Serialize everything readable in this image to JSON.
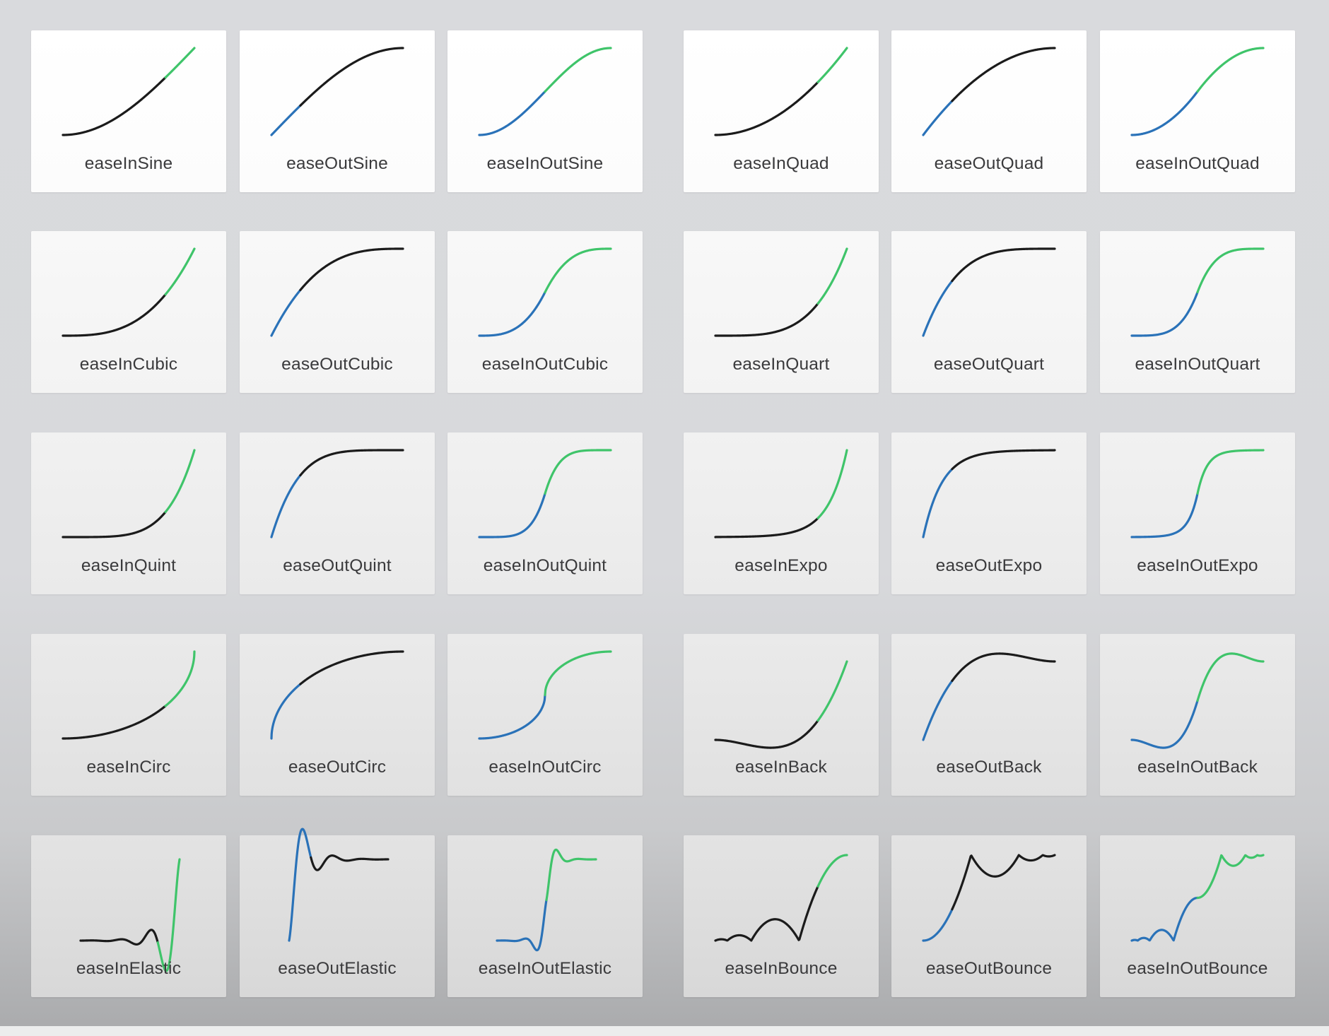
{
  "colors": {
    "ease_in_segment": "#3fc46a",
    "ease_out_segment": "#2a72b8",
    "neutral_segment": "#1b1b1b",
    "card_top": "#ffffff",
    "card_bottom": "#d9d9db",
    "label_text": "#3a3a3c"
  },
  "curves": [
    {
      "label": "easeInSine",
      "fn": "easeInSine"
    },
    {
      "label": "easeOutSine",
      "fn": "easeOutSine"
    },
    {
      "label": "easeInOutSine",
      "fn": "easeInOutSine"
    },
    {
      "label": "easeInQuad",
      "fn": "easeInQuad"
    },
    {
      "label": "easeOutQuad",
      "fn": "easeOutQuad"
    },
    {
      "label": "easeInOutQuad",
      "fn": "easeInOutQuad"
    },
    {
      "label": "easeInCubic",
      "fn": "easeInCubic"
    },
    {
      "label": "easeOutCubic",
      "fn": "easeOutCubic"
    },
    {
      "label": "easeInOutCubic",
      "fn": "easeInOutCubic"
    },
    {
      "label": "easeInQuart",
      "fn": "easeInQuart"
    },
    {
      "label": "easeOutQuart",
      "fn": "easeOutQuart"
    },
    {
      "label": "easeInOutQuart",
      "fn": "easeInOutQuart"
    },
    {
      "label": "easeInQuint",
      "fn": "easeInQuint"
    },
    {
      "label": "easeOutQuint",
      "fn": "easeOutQuint"
    },
    {
      "label": "easeInOutQuint",
      "fn": "easeInOutQuint"
    },
    {
      "label": "easeInExpo",
      "fn": "easeInExpo"
    },
    {
      "label": "easeOutExpo",
      "fn": "easeOutExpo"
    },
    {
      "label": "easeInOutExpo",
      "fn": "easeInOutExpo"
    },
    {
      "label": "easeInCirc",
      "fn": "easeInCirc"
    },
    {
      "label": "easeOutCirc",
      "fn": "easeOutCirc"
    },
    {
      "label": "easeInOutCirc",
      "fn": "easeInOutCirc"
    },
    {
      "label": "easeInBack",
      "fn": "easeInBack"
    },
    {
      "label": "easeOutBack",
      "fn": "easeOutBack"
    },
    {
      "label": "easeInOutBack",
      "fn": "easeInOutBack"
    },
    {
      "label": "easeInElastic",
      "fn": "easeInElastic"
    },
    {
      "label": "easeOutElastic",
      "fn": "easeOutElastic"
    },
    {
      "label": "easeInOutElastic",
      "fn": "easeInOutElastic"
    },
    {
      "label": "easeInBounce",
      "fn": "easeInBounce"
    },
    {
      "label": "easeOutBounce",
      "fn": "easeOutBounce"
    },
    {
      "label": "easeInOutBounce",
      "fn": "easeInOutBounce"
    }
  ]
}
